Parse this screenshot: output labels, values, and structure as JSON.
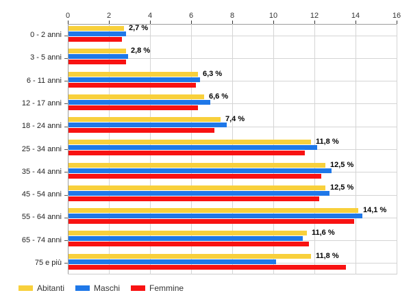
{
  "chart_data": {
    "type": "bar",
    "orientation": "horizontal",
    "title": "",
    "categories": [
      "0 - 2 anni",
      "3 - 5 anni",
      "6 - 11 anni",
      "12 - 17 anni",
      "18 - 24 anni",
      "25 - 34 anni",
      "35 - 44 anni",
      "45 - 54 anni",
      "55 - 64 anni",
      "65 - 74 anni",
      "75 e più"
    ],
    "series": [
      {
        "name": "Abitanti",
        "color": "#F8D03C",
        "values": [
          2.7,
          2.8,
          6.3,
          6.6,
          7.4,
          11.8,
          12.5,
          12.5,
          14.1,
          11.6,
          11.8
        ]
      },
      {
        "name": "Maschi",
        "color": "#1F78E8",
        "values": [
          2.8,
          2.9,
          6.4,
          6.9,
          7.7,
          12.1,
          12.8,
          12.7,
          14.3,
          11.4,
          10.1
        ]
      },
      {
        "name": "Femmine",
        "color": "#F81212",
        "values": [
          2.6,
          2.8,
          6.2,
          6.3,
          7.1,
          11.5,
          12.3,
          12.2,
          13.9,
          11.7,
          13.5
        ]
      }
    ],
    "value_labels": [
      "2,7 %",
      "2,8 %",
      "6,3 %",
      "6,6 %",
      "7,4 %",
      "11,8 %",
      "12,5 %",
      "12,5 %",
      "14,1 %",
      "11,6 %",
      "11,8 %"
    ],
    "x_ticks": [
      0,
      2,
      4,
      6,
      8,
      10,
      12,
      14,
      16
    ],
    "xlim": [
      0,
      16
    ],
    "xlabel": "",
    "ylabel": "",
    "grid": true,
    "legend": [
      "Abitanti",
      "Maschi",
      "Femmine"
    ],
    "legend_position": "bottom"
  },
  "colors": {
    "background": "#FFFFFF",
    "gridline": "#D4D4D4",
    "axis": "#9C9C9C",
    "tick_text": "#333333",
    "category_text": "#222222",
    "value_label_text": "#000000",
    "legend_text": "#333333"
  }
}
